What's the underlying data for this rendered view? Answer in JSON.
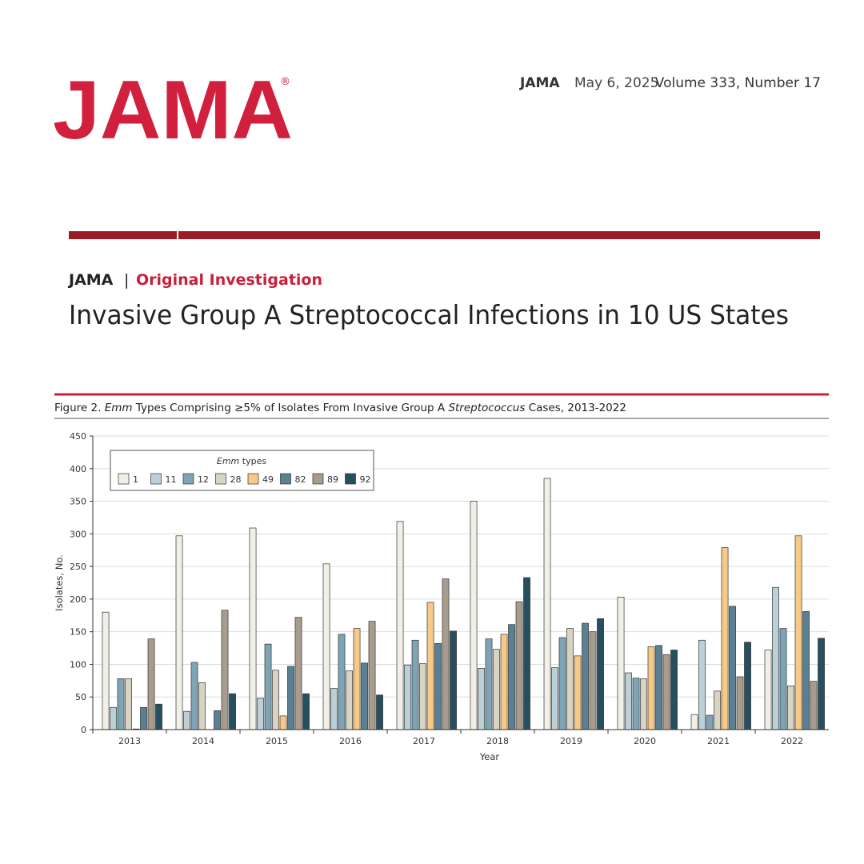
{
  "header": {
    "logo": "JAMA",
    "logo_mark": "®",
    "journal": "JAMA",
    "date": "May 6, 2025",
    "issue": "Volume 333, Number 17"
  },
  "article": {
    "journal": "JAMA",
    "separator": "|",
    "section": "Original Investigation",
    "title": "Invasive Group A Streptococcal Infections in 10 US States"
  },
  "chart_data": {
    "type": "bar",
    "title": [
      {
        "text": "Figure 2. "
      },
      {
        "text": "Emm",
        "italic": true
      },
      {
        "text": " Types Comprising ≥5% of Isolates From Invasive Group A "
      },
      {
        "text": "Streptococcus",
        "italic": true
      },
      {
        "text": " Cases, 2013-2022"
      }
    ],
    "x_label": "Year",
    "y_label": "Isolates, No.",
    "legend_title": [
      {
        "text": "Emm",
        "italic": true
      },
      {
        "text": " types"
      }
    ],
    "legend_position": "upper-left",
    "categories": [
      "2013",
      "2014",
      "2015",
      "2016",
      "2017",
      "2018",
      "2019",
      "2020",
      "2021",
      "2022"
    ],
    "ylim": [
      0,
      450
    ],
    "yticks": [
      0,
      50,
      100,
      150,
      200,
      250,
      300,
      350,
      400,
      450
    ],
    "grid": true,
    "series": [
      {
        "name": "1",
        "color": "#f1efe6",
        "values": [
          180,
          297,
          309,
          254,
          319,
          350,
          385,
          203,
          23,
          122
        ]
      },
      {
        "name": "11",
        "color": "#bcd0d8",
        "values": [
          34,
          28,
          48,
          63,
          99,
          94,
          95,
          87,
          137,
          218
        ]
      },
      {
        "name": "12",
        "color": "#7ea4b5",
        "values": [
          78,
          103,
          131,
          146,
          137,
          139,
          141,
          79,
          22,
          155
        ]
      },
      {
        "name": "28",
        "color": "#d9d3c4",
        "values": [
          78,
          72,
          91,
          90,
          101,
          123,
          155,
          78,
          59,
          67
        ]
      },
      {
        "name": "49",
        "color": "#f7c987",
        "values": [
          1,
          0,
          21,
          155,
          195,
          146,
          113,
          127,
          279,
          297
        ]
      },
      {
        "name": "82",
        "color": "#5a8092",
        "values": [
          34,
          29,
          97,
          102,
          132,
          161,
          163,
          129,
          189,
          181
        ]
      },
      {
        "name": "89",
        "color": "#a79c8d",
        "values": [
          139,
          183,
          172,
          166,
          231,
          196,
          150,
          115,
          81,
          74
        ]
      },
      {
        "name": "92",
        "color": "#274f5f",
        "values": [
          39,
          55,
          55,
          53,
          151,
          233,
          170,
          122,
          134,
          140
        ]
      }
    ]
  }
}
